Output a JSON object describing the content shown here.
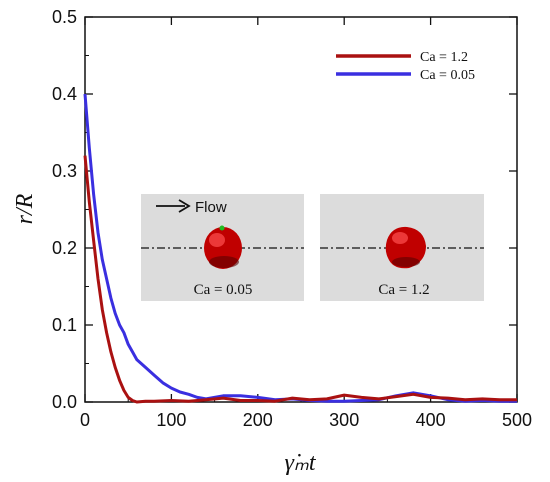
{
  "chart_data": {
    "type": "line",
    "xlabel": "γ̇ₘt",
    "ylabel": "r/R",
    "xlim": [
      0,
      500
    ],
    "ylim": [
      0,
      0.5
    ],
    "xticks": [
      0,
      100,
      200,
      300,
      400,
      500
    ],
    "yticks": [
      0.0,
      0.1,
      0.2,
      0.3,
      0.4,
      0.5
    ],
    "x_tick_labels": [
      "0",
      "100",
      "200",
      "300",
      "400",
      "500"
    ],
    "y_tick_labels": [
      "0.0",
      "0.1",
      "0.2",
      "0.3",
      "0.4",
      "0.5"
    ],
    "grid": false,
    "legend_position": "top-right",
    "series": [
      {
        "name": "Ca = 1.2",
        "color": "#aa1111",
        "x": [
          0,
          5,
          10,
          15,
          20,
          25,
          30,
          35,
          40,
          45,
          50,
          55,
          60,
          70,
          80,
          100,
          120,
          140,
          160,
          180,
          200,
          220,
          240,
          260,
          280,
          300,
          320,
          340,
          360,
          380,
          400,
          420,
          440,
          460,
          480,
          500
        ],
        "y": [
          0.32,
          0.26,
          0.21,
          0.16,
          0.12,
          0.09,
          0.065,
          0.045,
          0.028,
          0.015,
          0.006,
          0.002,
          0.0,
          0.001,
          0.001,
          0.002,
          0.001,
          0.003,
          0.005,
          0.002,
          0.002,
          0.001,
          0.005,
          0.003,
          0.004,
          0.009,
          0.006,
          0.004,
          0.007,
          0.01,
          0.006,
          0.005,
          0.003,
          0.004,
          0.003,
          0.003
        ]
      },
      {
        "name": "Ca = 0.05",
        "color": "#3a2fe0",
        "x": [
          0,
          5,
          10,
          15,
          20,
          25,
          30,
          35,
          40,
          45,
          50,
          55,
          60,
          70,
          80,
          90,
          100,
          110,
          120,
          130,
          140,
          150,
          160,
          180,
          200,
          220,
          240,
          260,
          280,
          300,
          320,
          340,
          360,
          380,
          400,
          420,
          440,
          460,
          480,
          500
        ],
        "y": [
          0.4,
          0.33,
          0.27,
          0.22,
          0.185,
          0.16,
          0.135,
          0.115,
          0.1,
          0.09,
          0.075,
          0.065,
          0.055,
          0.045,
          0.035,
          0.025,
          0.018,
          0.013,
          0.01,
          0.006,
          0.004,
          0.006,
          0.008,
          0.008,
          0.006,
          0.003,
          0.004,
          0.002,
          0.001,
          0.001,
          0.002,
          0.003,
          0.008,
          0.012,
          0.008,
          0.003,
          0.001,
          0.002,
          0.001,
          0.001
        ]
      }
    ],
    "inset": {
      "flow_label": "Flow",
      "left_label": "Ca = 0.05",
      "right_label": "Ca = 1.2"
    }
  }
}
